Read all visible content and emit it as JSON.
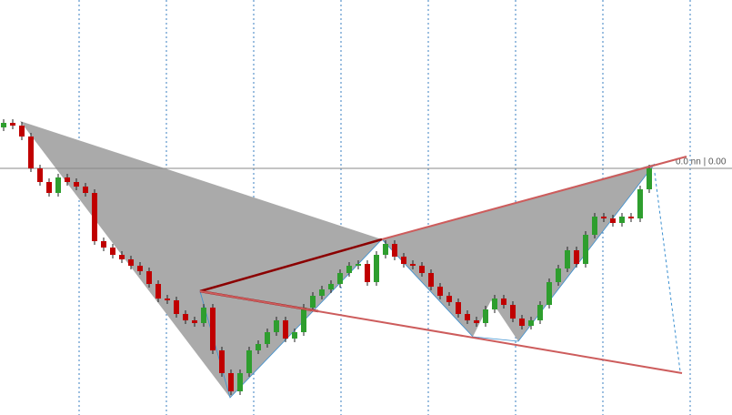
{
  "chart_data": {
    "type": "candlestick",
    "price_label": "0.0 nn | 0.00",
    "up_color": "#2e9e2e",
    "down_color": "#c00000",
    "open": [
      316,
      321,
      318,
      306,
      271,
      256,
      244,
      261,
      256,
      251,
      244,
      191,
      184,
      176,
      171,
      164,
      158,
      144,
      128,
      126,
      111,
      104,
      101,
      118,
      71,
      46,
      26,
      46,
      71,
      78,
      91,
      104,
      84,
      91,
      118,
      131,
      138,
      144,
      156,
      164,
      166,
      146,
      176,
      188,
      174,
      166,
      164,
      156,
      141,
      131,
      124,
      111,
      104,
      101,
      116,
      128,
      121,
      106,
      98,
      104,
      121,
      146,
      161,
      181,
      166,
      198,
      218,
      216,
      211,
      218,
      216,
      248
    ],
    "high": [
      325,
      325,
      322,
      310,
      275,
      260,
      265,
      265,
      260,
      255,
      248,
      195,
      188,
      180,
      175,
      168,
      162,
      148,
      132,
      130,
      115,
      108,
      122,
      122,
      75,
      50,
      50,
      75,
      82,
      95,
      108,
      108,
      95,
      122,
      135,
      142,
      148,
      160,
      168,
      170,
      170,
      180,
      192,
      192,
      178,
      170,
      168,
      160,
      145,
      135,
      128,
      115,
      108,
      120,
      132,
      132,
      125,
      110,
      108,
      125,
      150,
      165,
      185,
      185,
      202,
      222,
      222,
      220,
      222,
      222,
      252,
      275
    ],
    "low": [
      312,
      314,
      302,
      267,
      252,
      240,
      240,
      252,
      247,
      240,
      187,
      180,
      172,
      167,
      160,
      154,
      140,
      124,
      122,
      107,
      100,
      97,
      97,
      67,
      42,
      22,
      22,
      42,
      67,
      74,
      87,
      80,
      80,
      87,
      114,
      127,
      134,
      140,
      152,
      160,
      142,
      142,
      172,
      170,
      162,
      160,
      152,
      137,
      127,
      120,
      107,
      100,
      97,
      97,
      112,
      117,
      102,
      94,
      94,
      100,
      117,
      142,
      157,
      162,
      162,
      194,
      212,
      207,
      207,
      212,
      212,
      244
    ],
    "close": [
      321,
      318,
      306,
      271,
      256,
      244,
      261,
      256,
      251,
      244,
      191,
      184,
      176,
      171,
      164,
      158,
      144,
      128,
      126,
      111,
      104,
      101,
      118,
      71,
      46,
      26,
      46,
      71,
      78,
      91,
      104,
      84,
      91,
      118,
      131,
      138,
      144,
      156,
      164,
      166,
      146,
      176,
      188,
      174,
      166,
      164,
      156,
      141,
      131,
      124,
      111,
      104,
      101,
      116,
      128,
      121,
      106,
      98,
      104,
      121,
      146,
      161,
      181,
      166,
      198,
      218,
      216,
      211,
      218,
      216,
      248,
      271
    ]
  }
}
